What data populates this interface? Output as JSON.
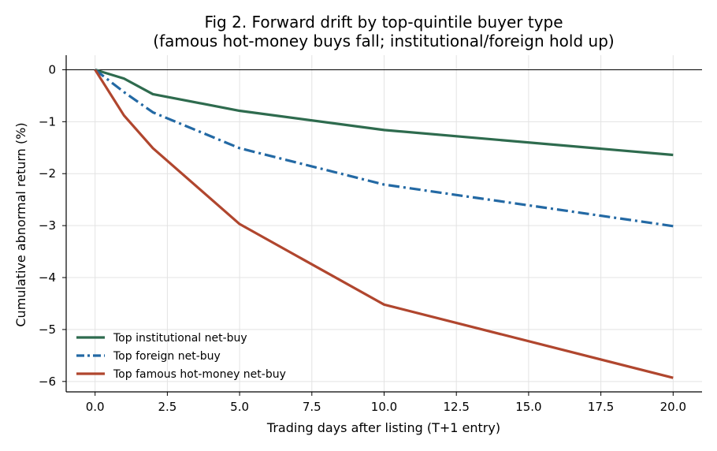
{
  "chart_data": {
    "type": "line",
    "title": "Fig 2. Forward drift by top-quintile buyer type",
    "subtitle": "(famous hot-money buys fall; institutional/foreign hold up)",
    "xlabel": "Trading days after listing (T+1 entry)",
    "ylabel": "Cumulative abnormal return (%)",
    "xlim": [
      -1,
      21
    ],
    "ylim": [
      -6.2,
      0.28
    ],
    "xticks": [
      0.0,
      2.5,
      5.0,
      7.5,
      10.0,
      12.5,
      15.0,
      17.5,
      20.0
    ],
    "xtick_labels": [
      "0.0",
      "2.5",
      "5.0",
      "7.5",
      "10.0",
      "12.5",
      "15.0",
      "17.5",
      "20.0"
    ],
    "yticks": [
      0,
      -1,
      -2,
      -3,
      -4,
      -5,
      -6
    ],
    "ytick_labels": [
      "0",
      "−1",
      "−2",
      "−3",
      "−4",
      "−5",
      "−6"
    ],
    "grid": true,
    "zero_line": true,
    "legend_position": "lower-left",
    "series": [
      {
        "name": "Top institutional net-buy",
        "color": "#2e6b4e",
        "style": "solid",
        "x": [
          0,
          1,
          2,
          5,
          10,
          20
        ],
        "y": [
          0.0,
          -0.17,
          -0.47,
          -0.79,
          -1.16,
          -1.64
        ]
      },
      {
        "name": "Top foreign net-buy",
        "color": "#2369a4",
        "style": "dashdot",
        "x": [
          0,
          1,
          2,
          5,
          10,
          20
        ],
        "y": [
          0.0,
          -0.43,
          -0.82,
          -1.51,
          -2.21,
          -3.01
        ]
      },
      {
        "name": "Top famous hot-money net-buy",
        "color": "#b0462e",
        "style": "solid",
        "x": [
          0,
          1,
          2,
          5,
          10,
          20
        ],
        "y": [
          0.0,
          -0.88,
          -1.51,
          -2.97,
          -4.52,
          -5.93
        ]
      }
    ]
  }
}
